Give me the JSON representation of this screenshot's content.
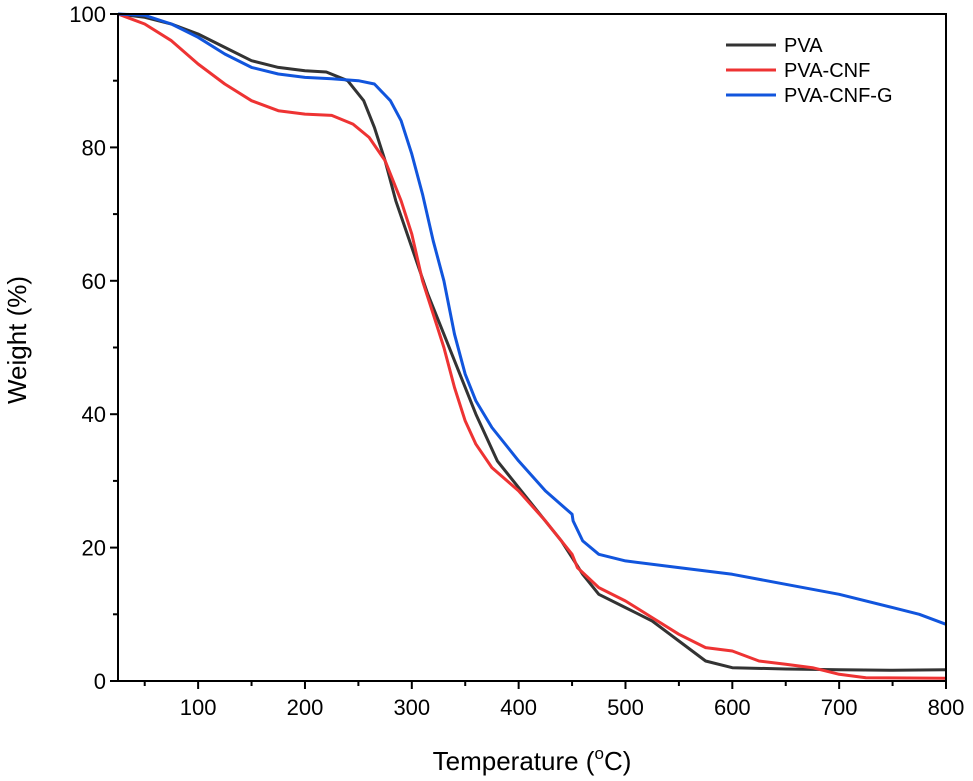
{
  "chart_data": {
    "type": "line",
    "title": "",
    "xlabel": "Temperature (",
    "xlabel_sup": "o",
    "xlabel_suffix": "C)",
    "ylabel": "Weight (%)",
    "xlim": [
      25,
      800
    ],
    "ylim": [
      0,
      100
    ],
    "xticks": [
      100,
      200,
      300,
      400,
      500,
      600,
      700,
      800
    ],
    "xtick_labels": [
      "100",
      "200",
      "300",
      "400",
      "500",
      "600",
      "700",
      "800"
    ],
    "yticks": [
      0,
      20,
      40,
      60,
      80,
      100
    ],
    "ytick_labels": [
      "0",
      "20",
      "40",
      "60",
      "80",
      "100"
    ],
    "grid": false,
    "legend_position": "top-right",
    "series": [
      {
        "name": "PVA",
        "color": "#333333",
        "points": [
          [
            25,
            100
          ],
          [
            50,
            99.5
          ],
          [
            75,
            98.5
          ],
          [
            100,
            97
          ],
          [
            125,
            95
          ],
          [
            150,
            93
          ],
          [
            175,
            92
          ],
          [
            200,
            91.5
          ],
          [
            220,
            91.3
          ],
          [
            240,
            90
          ],
          [
            255,
            87
          ],
          [
            265,
            83
          ],
          [
            275,
            78
          ],
          [
            285,
            72
          ],
          [
            300,
            65
          ],
          [
            315,
            58
          ],
          [
            330,
            52
          ],
          [
            345,
            46
          ],
          [
            360,
            40
          ],
          [
            380,
            33
          ],
          [
            400,
            29
          ],
          [
            420,
            25
          ],
          [
            440,
            21
          ],
          [
            450,
            18.5
          ],
          [
            460,
            16
          ],
          [
            475,
            13
          ],
          [
            500,
            11
          ],
          [
            525,
            9
          ],
          [
            550,
            6
          ],
          [
            575,
            3
          ],
          [
            600,
            2
          ],
          [
            650,
            1.8
          ],
          [
            700,
            1.7
          ],
          [
            750,
            1.6
          ],
          [
            800,
            1.7
          ]
        ]
      },
      {
        "name": "PVA-CNF",
        "color": "#ee3333",
        "points": [
          [
            25,
            100
          ],
          [
            50,
            98.5
          ],
          [
            75,
            96
          ],
          [
            100,
            92.5
          ],
          [
            125,
            89.5
          ],
          [
            150,
            87
          ],
          [
            175,
            85.5
          ],
          [
            200,
            85
          ],
          [
            225,
            84.8
          ],
          [
            245,
            83.5
          ],
          [
            260,
            81.5
          ],
          [
            275,
            78
          ],
          [
            290,
            72
          ],
          [
            300,
            67
          ],
          [
            310,
            60
          ],
          [
            320,
            55
          ],
          [
            330,
            50
          ],
          [
            340,
            44
          ],
          [
            350,
            39
          ],
          [
            360,
            35.5
          ],
          [
            375,
            32
          ],
          [
            400,
            28.5
          ],
          [
            425,
            24
          ],
          [
            450,
            19
          ],
          [
            455,
            17
          ],
          [
            475,
            14
          ],
          [
            500,
            12
          ],
          [
            525,
            9.5
          ],
          [
            550,
            7
          ],
          [
            575,
            5
          ],
          [
            600,
            4.5
          ],
          [
            625,
            3
          ],
          [
            650,
            2.5
          ],
          [
            675,
            2
          ],
          [
            700,
            1
          ],
          [
            725,
            0.5
          ],
          [
            800,
            0.4
          ]
        ]
      },
      {
        "name": "PVA-CNF-G",
        "color": "#1155dd",
        "points": [
          [
            25,
            100
          ],
          [
            50,
            99.8
          ],
          [
            75,
            98.5
          ],
          [
            100,
            96.5
          ],
          [
            125,
            94
          ],
          [
            150,
            92
          ],
          [
            175,
            91
          ],
          [
            200,
            90.5
          ],
          [
            225,
            90.3
          ],
          [
            250,
            90
          ],
          [
            265,
            89.5
          ],
          [
            280,
            87
          ],
          [
            290,
            84
          ],
          [
            300,
            79
          ],
          [
            310,
            73
          ],
          [
            320,
            66
          ],
          [
            330,
            60
          ],
          [
            340,
            52
          ],
          [
            350,
            46
          ],
          [
            360,
            42
          ],
          [
            375,
            38
          ],
          [
            400,
            33
          ],
          [
            425,
            28.5
          ],
          [
            450,
            25
          ],
          [
            451,
            24
          ],
          [
            460,
            21
          ],
          [
            475,
            19
          ],
          [
            500,
            18
          ],
          [
            550,
            17
          ],
          [
            600,
            16
          ],
          [
            650,
            14.5
          ],
          [
            700,
            13
          ],
          [
            750,
            11
          ],
          [
            775,
            10
          ],
          [
            800,
            8.5
          ]
        ]
      }
    ]
  }
}
